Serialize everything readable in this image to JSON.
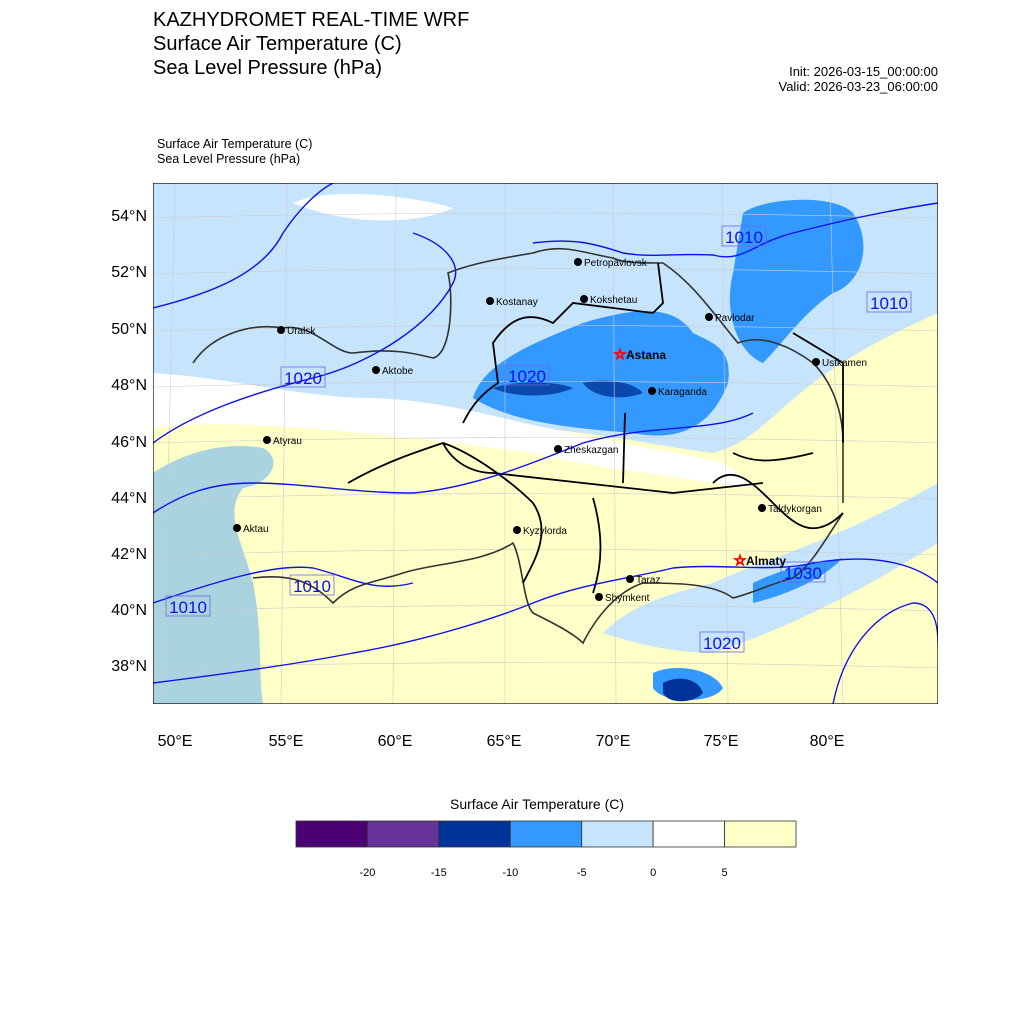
{
  "header": {
    "title": "KAZHYDROMET REAL-TIME WRF",
    "line2": "Surface Air Temperature  (C)",
    "line3": "Sea Level Pressure  (hPa)",
    "init": "Init: 2026-03-15_00:00:00",
    "valid": "Valid: 2026-03-23_06:00:00"
  },
  "subtitle": {
    "line1": "Surface Air Temperature   (C)",
    "line2": "Sea Level Pressure   (hPa)"
  },
  "axes": {
    "lat_labels": [
      "54°N",
      "52°N",
      "50°N",
      "48°N",
      "46°N",
      "44°N",
      "42°N",
      "40°N",
      "38°N"
    ],
    "lon_labels": [
      "50°E",
      "55°E",
      "60°E",
      "65°E",
      "70°E",
      "75°E",
      "80°E"
    ]
  },
  "cities": [
    "Petropavlovsk",
    "Kostanay",
    "Kokshetau",
    "Uralsk",
    "Pavlodar",
    "Astana",
    "Aktobe",
    "Karaganda",
    "Ustkamen",
    "Atyrau",
    "Zheskazgan",
    "Taldykorgan",
    "Aktau",
    "Kyzylorda",
    "Almaty",
    "Taraz",
    "Shymkent"
  ],
  "isobar_labels": [
    "1010",
    "1010",
    "1020",
    "1020",
    "1010",
    "1010",
    "1020",
    "1030"
  ],
  "colorbar": {
    "title": "Surface Air Temperature (C)",
    "colors": [
      "#4b0073",
      "#663399",
      "#003399",
      "#3399ff",
      "#c6e4fc",
      "#ffffff",
      "#ffffc8"
    ],
    "ticks": [
      "-20",
      "-15",
      "-10",
      "-5",
      "0",
      "5"
    ]
  }
}
